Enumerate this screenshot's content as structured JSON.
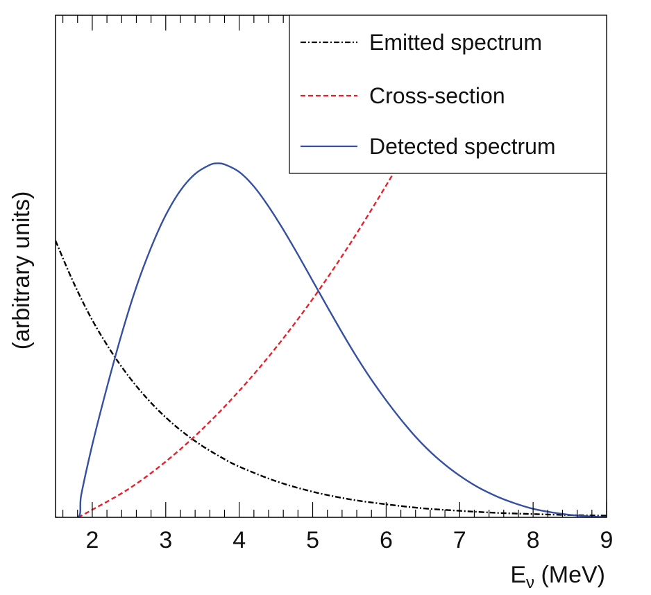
{
  "chart_data": {
    "type": "line",
    "xlabel": "E",
    "xlabel_subscript": "ν",
    "xlabel_units": " (MeV)",
    "ylabel": "(arbitrary units)",
    "xlim": [
      1.5,
      9
    ],
    "ylim": [
      0,
      1.0
    ],
    "xticks": [
      2,
      3,
      4,
      5,
      6,
      7,
      8,
      9
    ],
    "xtick_labels": [
      "2",
      "3",
      "4",
      "5",
      "6",
      "7",
      "8",
      "9"
    ],
    "legend_position": "top-right",
    "series": [
      {
        "name": "Emitted spectrum",
        "color": "#000000",
        "style": "dash-dot",
        "x": [
          1.5,
          1.75,
          2.0,
          2.25,
          2.5,
          2.75,
          3.0,
          3.25,
          3.5,
          3.75,
          4.0,
          4.5,
          5.0,
          5.5,
          6.0,
          6.5,
          7.0,
          7.5,
          8.0,
          8.5,
          9.0
        ],
        "y": [
          0.551,
          0.466,
          0.393,
          0.332,
          0.28,
          0.236,
          0.199,
          0.168,
          0.142,
          0.12,
          0.101,
          0.072,
          0.051,
          0.036,
          0.026,
          0.018,
          0.013,
          0.009,
          0.0065,
          0.0046,
          0.0033
        ]
      },
      {
        "name": "Cross-section",
        "color": "#e8202a",
        "style": "dashed",
        "x": [
          1.806,
          2.0,
          2.5,
          3.0,
          3.5,
          4.0,
          4.5,
          5.0,
          5.5,
          6.0,
          6.35
        ],
        "y": [
          0.0,
          0.015,
          0.057,
          0.111,
          0.176,
          0.252,
          0.338,
          0.435,
          0.543,
          0.661,
          0.75
        ]
      },
      {
        "name": "Detected spectrum",
        "color": "#3550a0",
        "style": "solid",
        "x": [
          1.5,
          1.806,
          1.85,
          2.0,
          2.2,
          2.4,
          2.6,
          2.8,
          3.0,
          3.2,
          3.4,
          3.6,
          3.7,
          3.8,
          4.0,
          4.2,
          4.4,
          4.6,
          4.8,
          5.0,
          5.2,
          5.4,
          5.6,
          5.8,
          6.0,
          6.25,
          6.5,
          6.75,
          7.0,
          7.25,
          7.5,
          7.75,
          8.0,
          8.25,
          8.5,
          8.75,
          9.0
        ],
        "y": [
          0.0,
          0.0,
          0.045,
          0.144,
          0.259,
          0.365,
          0.459,
          0.537,
          0.602,
          0.651,
          0.684,
          0.702,
          0.705,
          0.703,
          0.688,
          0.659,
          0.619,
          0.573,
          0.523,
          0.471,
          0.419,
          0.368,
          0.319,
          0.274,
          0.233,
          0.186,
          0.145,
          0.111,
          0.083,
          0.06,
          0.042,
          0.028,
          0.017,
          0.01,
          0.005,
          0.002,
          0.0
        ]
      }
    ]
  }
}
